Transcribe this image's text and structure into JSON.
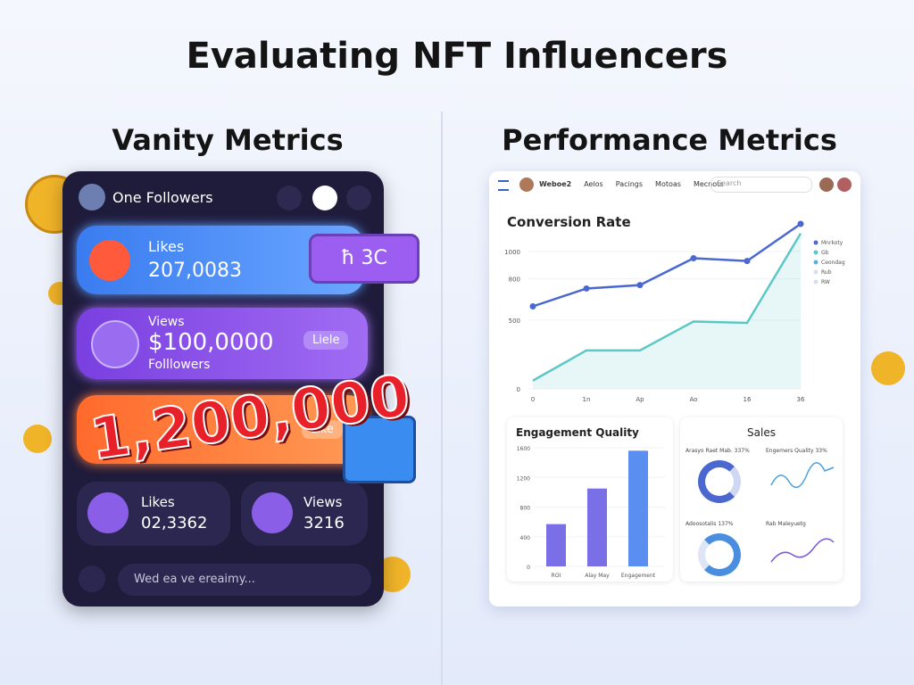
{
  "title": "Evaluating NFT Influencers",
  "vanity": {
    "heading": "Vanity Metrics",
    "header": "One Followers",
    "card1": {
      "label": "Likes",
      "value": "207,0083"
    },
    "bubble": "ħ 3C",
    "card2": {
      "label": "Views",
      "value": "$100,0000",
      "sub": "Folllowers",
      "button": "Liele"
    },
    "big_number": "1,200,000",
    "card3": {
      "button": "Like"
    },
    "stat1": {
      "label": "Likes",
      "value": "02,3362"
    },
    "stat2": {
      "label": "Views",
      "value": "3216"
    },
    "input": "Wed ea ve ereaimy..."
  },
  "performance": {
    "heading": "Performance Metrics",
    "nav": [
      "Weboe2",
      "Aelos",
      "Pacings",
      "Motoas",
      "Mecnots"
    ],
    "search": "Search",
    "sales": {
      "title": "Sales",
      "cards": [
        "Arasyo Raet Mab. 337%",
        "Engemers Quality 33%",
        "Adoosotalis 137%",
        "Rab Maleyuetg"
      ]
    }
  },
  "chart_data": [
    {
      "type": "line",
      "title": "Conversion Rate",
      "categories": [
        "0",
        "1n",
        "Ap",
        "Ao",
        "16",
        "36"
      ],
      "series": [
        {
          "name": "Mnrkoty",
          "color": "#4a68cf",
          "values": [
            600,
            730,
            755,
            950,
            930,
            1200
          ]
        },
        {
          "name": "Gb",
          "color": "#5cc8c6",
          "values": [
            60,
            280,
            280,
            490,
            480,
            1130
          ]
        }
      ],
      "legend_extra": [
        "Ceondag",
        "Rub",
        "RW"
      ],
      "ylim": [
        0,
        1200
      ],
      "yticks": [
        0,
        500,
        800,
        1000
      ]
    },
    {
      "type": "bar",
      "title": "Engagement Quality",
      "categories": [
        "ROI",
        "Alay May",
        "Engagement"
      ],
      "values": [
        570,
        1050,
        1560
      ],
      "color": "#7a6fe6",
      "ylim": [
        0,
        1600
      ],
      "yticks": [
        0,
        400,
        800,
        1200,
        1600
      ]
    }
  ]
}
